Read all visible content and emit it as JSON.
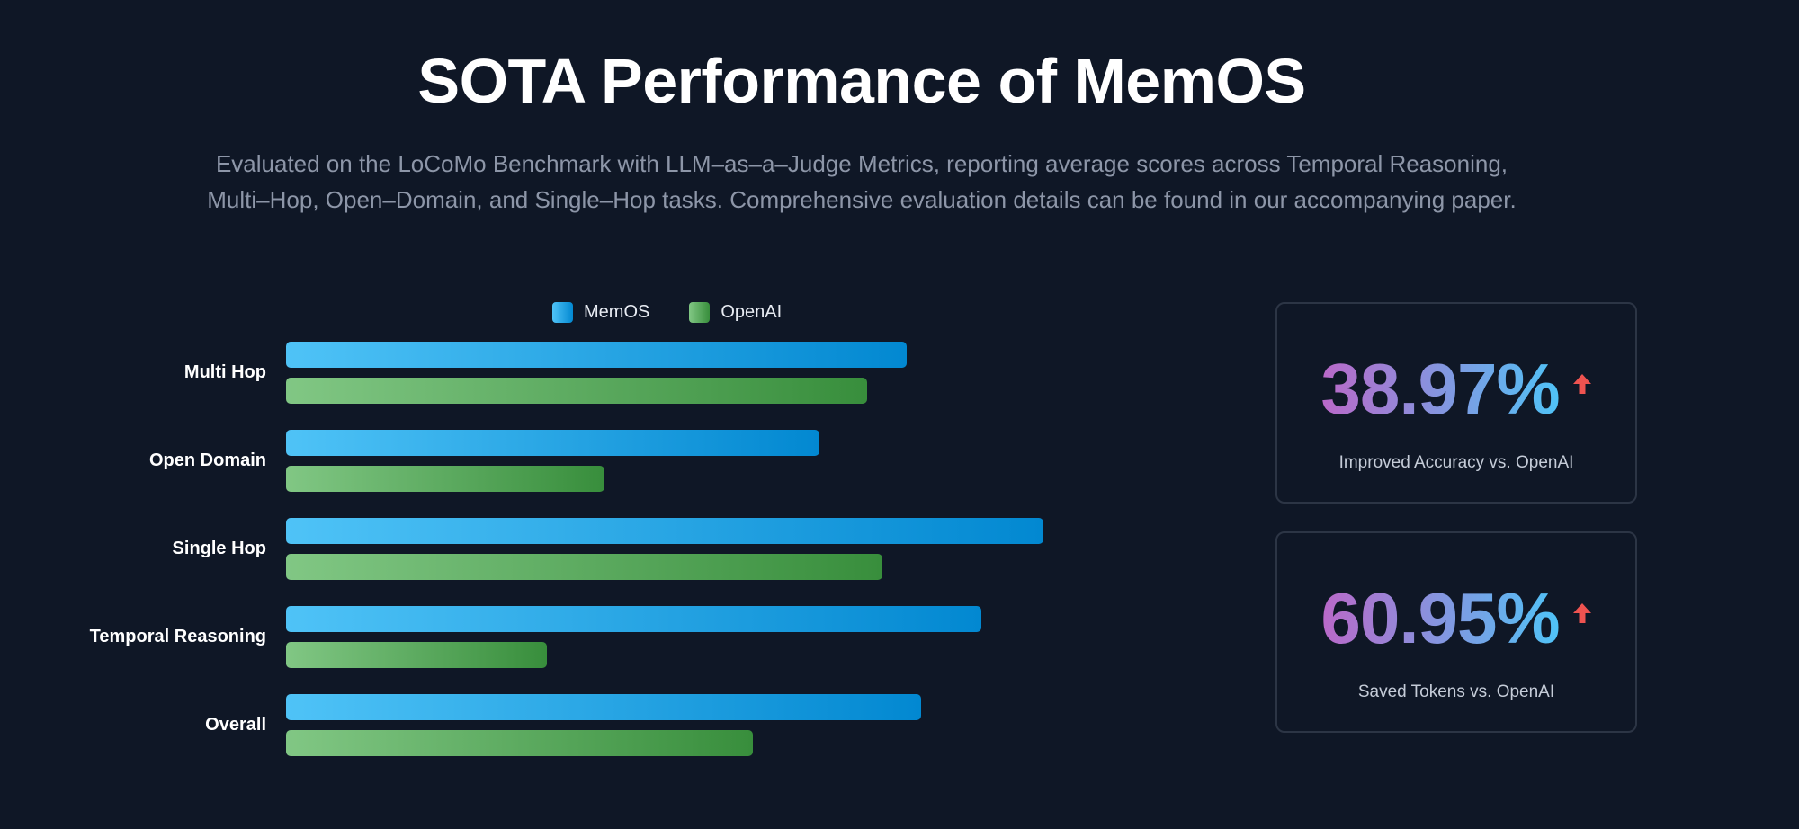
{
  "header": {
    "title": "SOTA Performance of MemOS",
    "subtitle_line1": "Evaluated on the LoCoMo Benchmark with LLM–as–a–Judge Metrics, reporting average scores across Temporal Reasoning,",
    "subtitle_line2": "Multi–Hop, Open–Domain, and Single–Hop tasks. Comprehensive evaluation details can be found in our accompanying paper."
  },
  "colors": {
    "background": "#0f1726",
    "memos_start": "#4fc3f7",
    "memos_end": "#0288d1",
    "openai_start": "#81c784",
    "openai_end": "#388e3c",
    "arrow": "#ef5350"
  },
  "chart_data": {
    "type": "bar",
    "orientation": "horizontal",
    "categories": [
      "Multi Hop",
      "Open Domain",
      "Single Hop",
      "Temporal Reasoning",
      "Overall"
    ],
    "series": [
      {
        "name": "MemOS",
        "values": [
          69,
          59.3,
          84.2,
          77.3,
          70.6
        ]
      },
      {
        "name": "OpenAI",
        "values": [
          64.6,
          35.4,
          66.3,
          29,
          51.9
        ]
      }
    ],
    "xlim": [
      0,
      100
    ],
    "grid": false,
    "legend": "top-center"
  },
  "stats": [
    {
      "value": "38.97%",
      "label": "Improved Accuracy vs. OpenAI",
      "icon": "arrow-up-icon"
    },
    {
      "value": "60.95%",
      "label": "Saved Tokens vs. OpenAI",
      "icon": "arrow-up-icon"
    }
  ]
}
